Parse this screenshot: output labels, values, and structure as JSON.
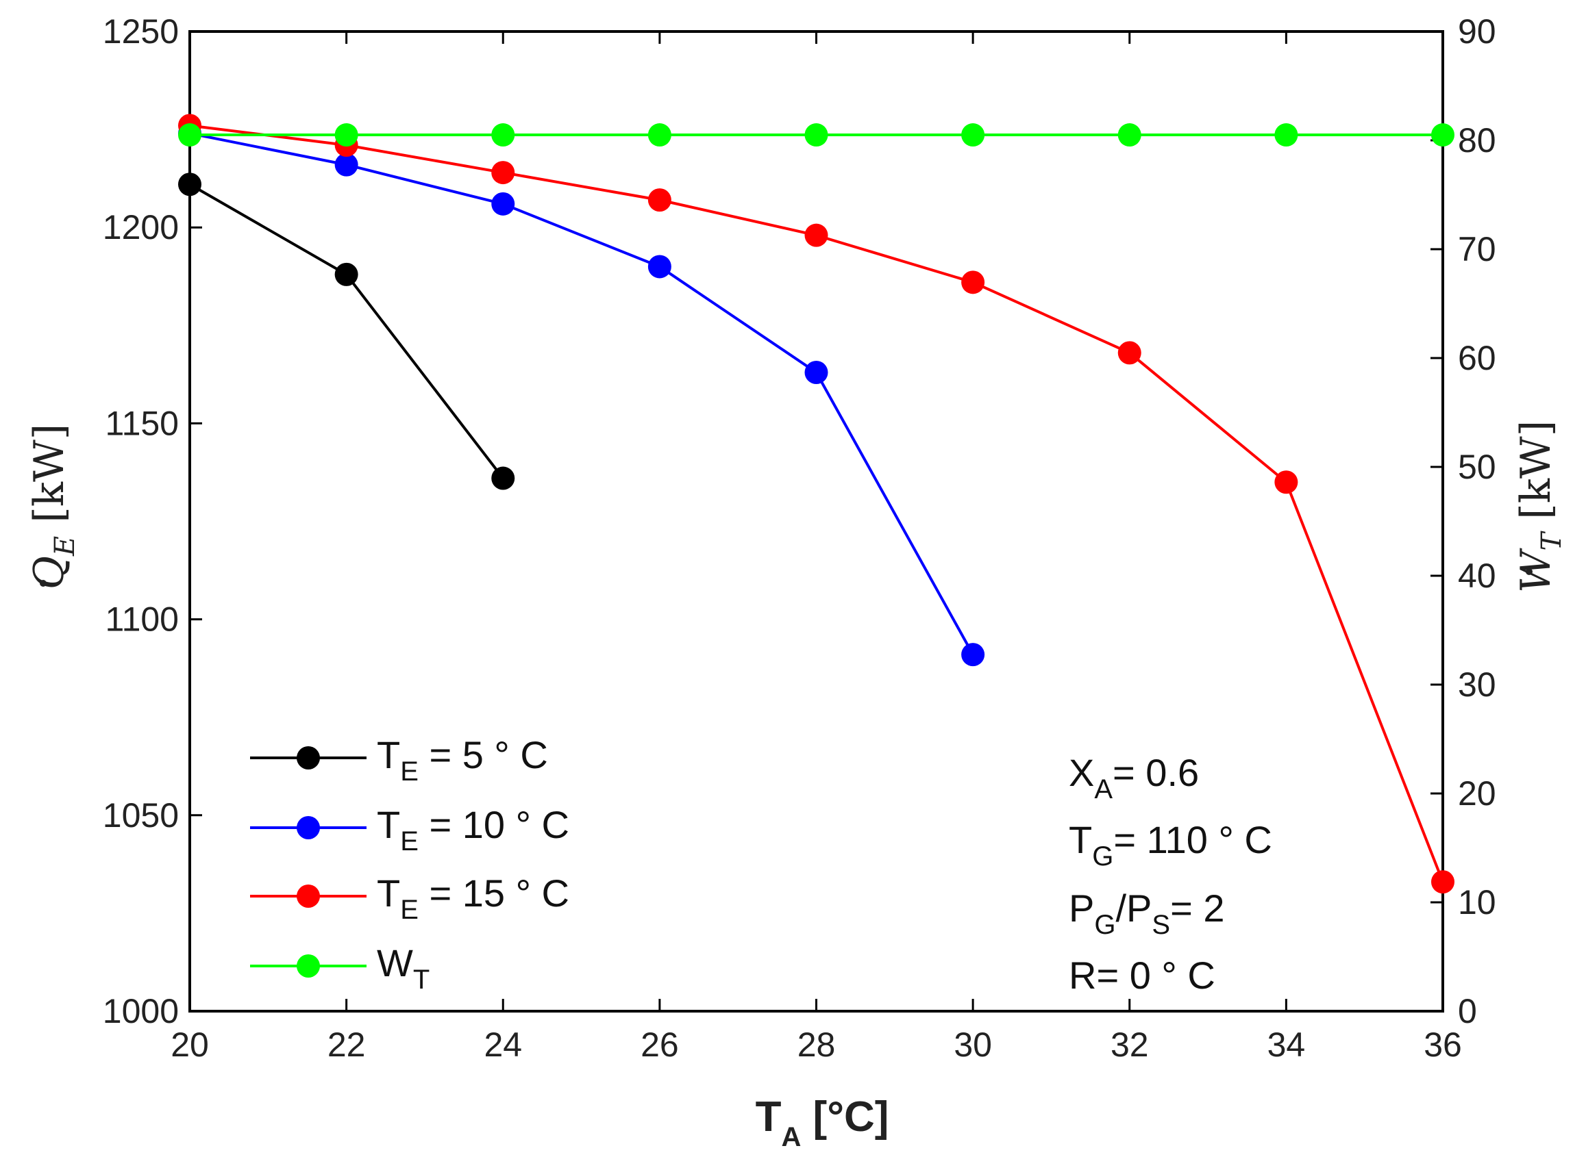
{
  "chart_data": {
    "type": "line",
    "x": [
      20,
      22,
      24,
      26,
      28,
      30,
      32,
      34,
      36
    ],
    "xlabel": {
      "main": "T",
      "sub": "A",
      "unit": " [°C]"
    },
    "xlim": [
      20,
      36
    ],
    "xticks": [
      "20",
      "22",
      "24",
      "26",
      "28",
      "30",
      "32",
      "34",
      "36"
    ],
    "ylabel_left": {
      "main": "Q",
      "sub": "E",
      "unit": " [kW]"
    },
    "ylim_left": [
      1000,
      1250
    ],
    "yticks_left": [
      "1000",
      "1050",
      "1100",
      "1150",
      "1200",
      "1250"
    ],
    "ylabel_right": {
      "main": "W",
      "sub": "T",
      "unit": " [kW]"
    },
    "ylim_right": [
      0,
      90
    ],
    "yticks_right": [
      "0",
      "10",
      "20",
      "30",
      "40",
      "50",
      "60",
      "70",
      "80",
      "90"
    ],
    "grid": false,
    "legend_position": "bottom-left",
    "series": [
      {
        "name": "TE5",
        "label_main": "T",
        "label_sub": "E",
        "label_rest": " = 5 ° C",
        "color": "#000000",
        "axis": "left",
        "x": [
          20,
          22,
          24
        ],
        "values": [
          1211,
          1188,
          1136
        ]
      },
      {
        "name": "TE10",
        "label_main": "T",
        "label_sub": "E",
        "label_rest": " = 10 ° C",
        "color": "#0000ff",
        "axis": "left",
        "x": [
          20,
          22,
          24,
          26,
          28,
          30
        ],
        "values": [
          1224,
          1216,
          1206,
          1190,
          1163,
          1091
        ]
      },
      {
        "name": "TE15",
        "label_main": "T",
        "label_sub": "E",
        "label_rest": " = 15 ° C",
        "color": "#ff0000",
        "axis": "left",
        "x": [
          20,
          22,
          24,
          26,
          28,
          30,
          32,
          34,
          36
        ],
        "values": [
          1226,
          1221,
          1214,
          1207,
          1198,
          1186,
          1168,
          1135,
          1033
        ]
      },
      {
        "name": "WT",
        "label_main": "W",
        "label_sub": "T",
        "label_rest": "",
        "color": "#00ff00",
        "axis": "right",
        "x": [
          20,
          22,
          24,
          26,
          28,
          30,
          32,
          34,
          36
        ],
        "values": [
          80.5,
          80.5,
          80.5,
          80.5,
          80.5,
          80.5,
          80.5,
          80.5,
          80.5
        ]
      }
    ],
    "annotations": [
      {
        "main": "X",
        "sub": "A",
        "rest": "= 0.6"
      },
      {
        "main": "T",
        "sub": "G",
        "rest": "= 110 ° C"
      },
      {
        "main": "P",
        "sub": "G",
        "mid": "/P",
        "sub2": "S",
        "rest": "= 2"
      },
      {
        "main": "R= 0 ° C",
        "sub": "",
        "rest": ""
      }
    ]
  }
}
